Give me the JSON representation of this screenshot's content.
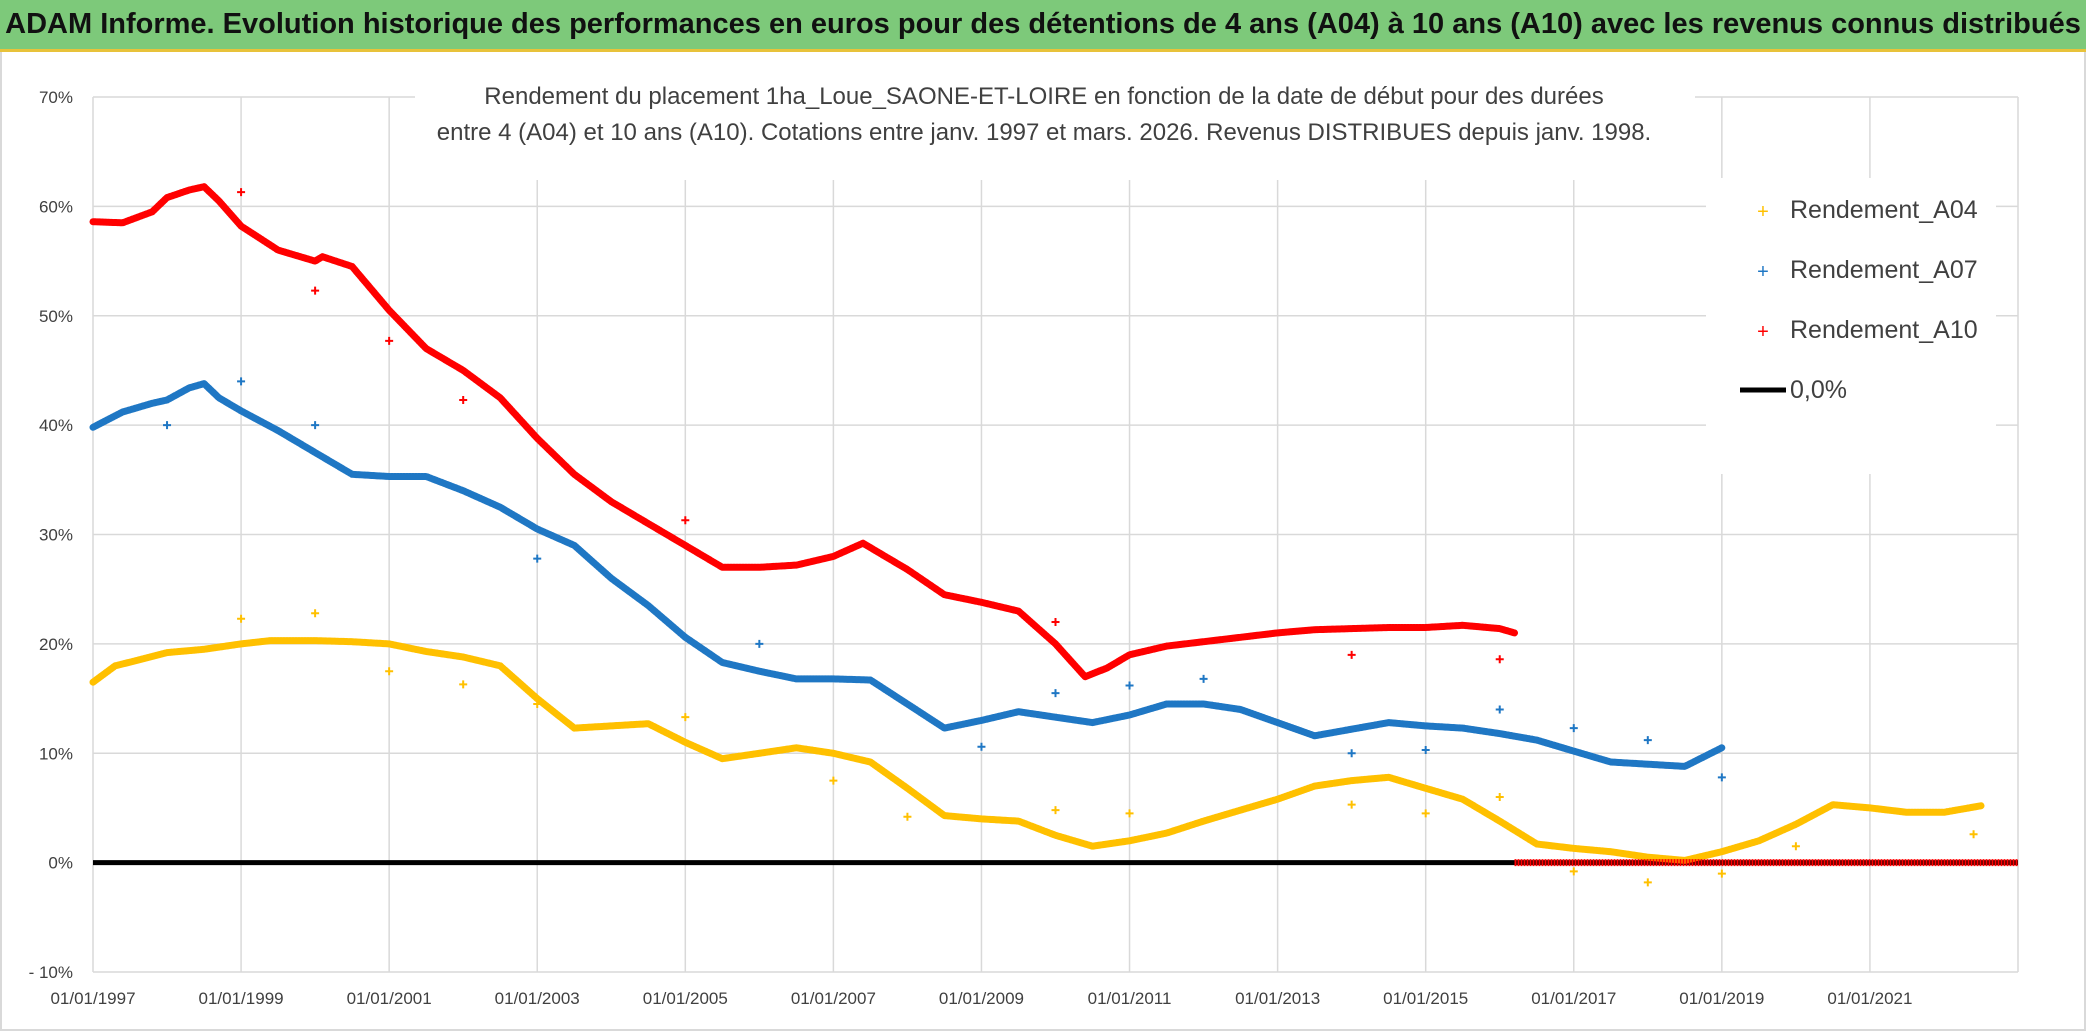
{
  "banner": {
    "title": "ADAM Informe. Evolution historique des performances en euros pour des détentions de 4 ans (A04) à 10 ans (A10) avec les revenus connus distribués",
    "background_color": "#7dc97a",
    "accent_color": "#e8c23a"
  },
  "chart_data": {
    "type": "line",
    "title_line1": "Rendement du placement 1ha_Loue_SAONE-ET-LOIRE en fonction de la date de début pour des durées",
    "title_line2": "entre 4 (A04) et 10 ans (A10). Cotations entre janv. 1997 et mars. 2026. Revenus DISTRIBUES depuis janv. 1998.",
    "xlabel": "",
    "ylabel": "",
    "xlim": [
      1997.0,
      2023.0
    ],
    "ylim": [
      -10,
      70
    ],
    "x_ticks": [
      1997,
      1999,
      2001,
      2003,
      2005,
      2007,
      2009,
      2011,
      2013,
      2015,
      2017,
      2019,
      2021
    ],
    "x_tick_labels": [
      "01/01/1997",
      "01/01/1999",
      "01/01/2001",
      "01/01/2003",
      "01/01/2005",
      "01/01/2007",
      "01/01/2009",
      "01/01/2011",
      "01/01/2013",
      "01/01/2015",
      "01/01/2017",
      "01/01/2019",
      "01/01/2021"
    ],
    "y_ticks": [
      -10,
      0,
      10,
      20,
      30,
      40,
      50,
      60,
      70
    ],
    "y_tick_labels": [
      "- 10%",
      "0%",
      "10%",
      "20%",
      "30%",
      "40%",
      "50%",
      "60%",
      "70%"
    ],
    "grid": true,
    "legend_position": "top-right",
    "series": [
      {
        "name": "Rendement_A04",
        "color": "#ffc000",
        "x": [
          1997.0,
          1997.3,
          1997.6,
          1998.0,
          1998.5,
          1999.0,
          1999.4,
          2000.0,
          2000.5,
          2001.0,
          2001.5,
          2002.0,
          2002.5,
          2003.0,
          2003.5,
          2004.0,
          2004.5,
          2005.0,
          2005.5,
          2006.0,
          2006.5,
          2007.0,
          2007.5,
          2008.0,
          2008.5,
          2009.0,
          2009.5,
          2010.0,
          2010.5,
          2011.0,
          2011.5,
          2012.0,
          2012.5,
          2013.0,
          2013.5,
          2014.0,
          2014.5,
          2015.0,
          2015.5,
          2016.0,
          2016.5,
          2017.0,
          2017.5,
          2018.0,
          2018.5,
          2019.0,
          2019.5,
          2020.0,
          2020.5,
          2021.0,
          2021.5,
          2022.0,
          2022.5
        ],
        "values": [
          16.5,
          18.0,
          18.5,
          19.2,
          19.5,
          20.0,
          20.3,
          20.3,
          20.2,
          20.0,
          19.3,
          18.8,
          18.0,
          15.0,
          12.3,
          12.5,
          12.7,
          11.0,
          9.5,
          10.0,
          10.5,
          10.0,
          9.2,
          6.8,
          4.3,
          4.0,
          3.8,
          2.5,
          1.5,
          2.0,
          2.7,
          3.8,
          4.8,
          5.8,
          7.0,
          7.5,
          7.8,
          6.8,
          5.8,
          3.8,
          1.7,
          1.3,
          1.0,
          0.5,
          0.2,
          1.0,
          2.0,
          3.5,
          5.3,
          5.0,
          4.6,
          4.6,
          5.2
        ]
      },
      {
        "name": "Rendement_A07",
        "color": "#1f77c4",
        "x": [
          1997.0,
          1997.4,
          1997.8,
          1998.0,
          1998.3,
          1998.5,
          1998.7,
          1999.0,
          1999.5,
          2000.0,
          2000.5,
          2001.0,
          2001.5,
          2002.0,
          2002.5,
          2003.0,
          2003.5,
          2004.0,
          2004.5,
          2005.0,
          2005.5,
          2006.0,
          2006.5,
          2007.0,
          2007.5,
          2008.0,
          2008.5,
          2009.0,
          2009.5,
          2010.0,
          2010.5,
          2011.0,
          2011.5,
          2012.0,
          2012.5,
          2013.0,
          2013.5,
          2014.0,
          2014.5,
          2015.0,
          2015.5,
          2016.0,
          2016.5,
          2017.0,
          2017.5,
          2018.0,
          2018.5,
          2019.0
        ],
        "values": [
          39.8,
          41.2,
          42.0,
          42.3,
          43.4,
          43.8,
          42.5,
          41.3,
          39.5,
          37.5,
          35.5,
          35.3,
          35.3,
          34.0,
          32.5,
          30.5,
          29.0,
          26.0,
          23.5,
          20.6,
          18.3,
          17.5,
          16.8,
          16.8,
          16.7,
          14.5,
          12.3,
          13.0,
          13.8,
          13.3,
          12.8,
          13.5,
          14.5,
          14.5,
          14.0,
          12.8,
          11.6,
          12.2,
          12.8,
          12.5,
          12.3,
          11.8,
          11.2,
          10.2,
          9.2,
          9.0,
          8.8,
          10.5
        ]
      },
      {
        "name": "Rendement_A10",
        "color": "#ff0000",
        "x": [
          1997.0,
          1997.4,
          1997.8,
          1998.0,
          1998.3,
          1998.5,
          1998.7,
          1999.0,
          1999.5,
          2000.0,
          2000.1,
          2000.5,
          2001.0,
          2001.5,
          2002.0,
          2002.5,
          2003.0,
          2003.5,
          2004.0,
          2004.5,
          2005.0,
          2005.5,
          2006.0,
          2006.5,
          2007.0,
          2007.4,
          2007.7,
          2008.0,
          2008.5,
          2009.0,
          2009.5,
          2010.0,
          2010.4,
          2010.7,
          2011.0,
          2011.5,
          2012.0,
          2012.5,
          2013.0,
          2013.5,
          2014.0,
          2014.5,
          2015.0,
          2015.5,
          2016.0,
          2016.2
        ],
        "values": [
          58.6,
          58.5,
          59.5,
          60.8,
          61.5,
          61.8,
          60.5,
          58.2,
          56.0,
          55.0,
          55.4,
          54.5,
          50.5,
          47.0,
          45.0,
          42.5,
          38.8,
          35.5,
          33.0,
          31.0,
          29.0,
          27.0,
          27.0,
          27.2,
          28.0,
          29.2,
          28.0,
          26.8,
          24.5,
          23.8,
          23.0,
          20.0,
          17.0,
          17.8,
          19.0,
          19.8,
          20.2,
          20.6,
          21.0,
          21.3,
          21.4,
          21.5,
          21.5,
          21.7,
          21.4,
          21.0
        ]
      },
      {
        "name": "0,0%",
        "color": "#000000",
        "x": [
          1997.0,
          2023.0
        ],
        "values": [
          0,
          0
        ]
      }
    ],
    "a10_zero_segment": {
      "x": [
        2016.2,
        2023.0
      ],
      "values": [
        0,
        0
      ],
      "color": "#ff0000"
    },
    "scatter_markers": [
      {
        "series": "Rendement_A04",
        "x": [
          1999.0,
          2000.0,
          2001.0,
          2002.0,
          2003.0,
          2005.0,
          2007.0,
          2008.0,
          2010.0,
          2011.0,
          2014.0,
          2015.0,
          2016.0,
          2017.0,
          2018.0,
          2019.0,
          2020.0,
          2022.4
        ],
        "values": [
          22.3,
          22.8,
          17.5,
          16.3,
          14.5,
          13.3,
          7.5,
          4.2,
          4.8,
          4.5,
          5.3,
          4.5,
          6.0,
          -0.8,
          -1.8,
          -1.0,
          1.5,
          2.6
        ]
      },
      {
        "series": "Rendement_A07",
        "x": [
          1998.0,
          1999.0,
          2000.0,
          2003.0,
          2006.0,
          2009.0,
          2010.0,
          2011.0,
          2012.0,
          2014.0,
          2015.0,
          2016.0,
          2017.0,
          2018.0,
          2019.0
        ],
        "values": [
          40.0,
          44.0,
          40.0,
          27.8,
          20.0,
          10.6,
          15.5,
          16.2,
          16.8,
          10.0,
          10.3,
          14.0,
          12.3,
          11.2,
          7.8
        ]
      },
      {
        "series": "Rendement_A10",
        "x": [
          1999.0,
          2000.0,
          2001.0,
          2002.0,
          2005.0,
          2010.0,
          2014.0,
          2016.0
        ],
        "values": [
          61.3,
          52.3,
          47.7,
          42.3,
          31.3,
          22.0,
          19.0,
          18.6
        ]
      }
    ]
  }
}
